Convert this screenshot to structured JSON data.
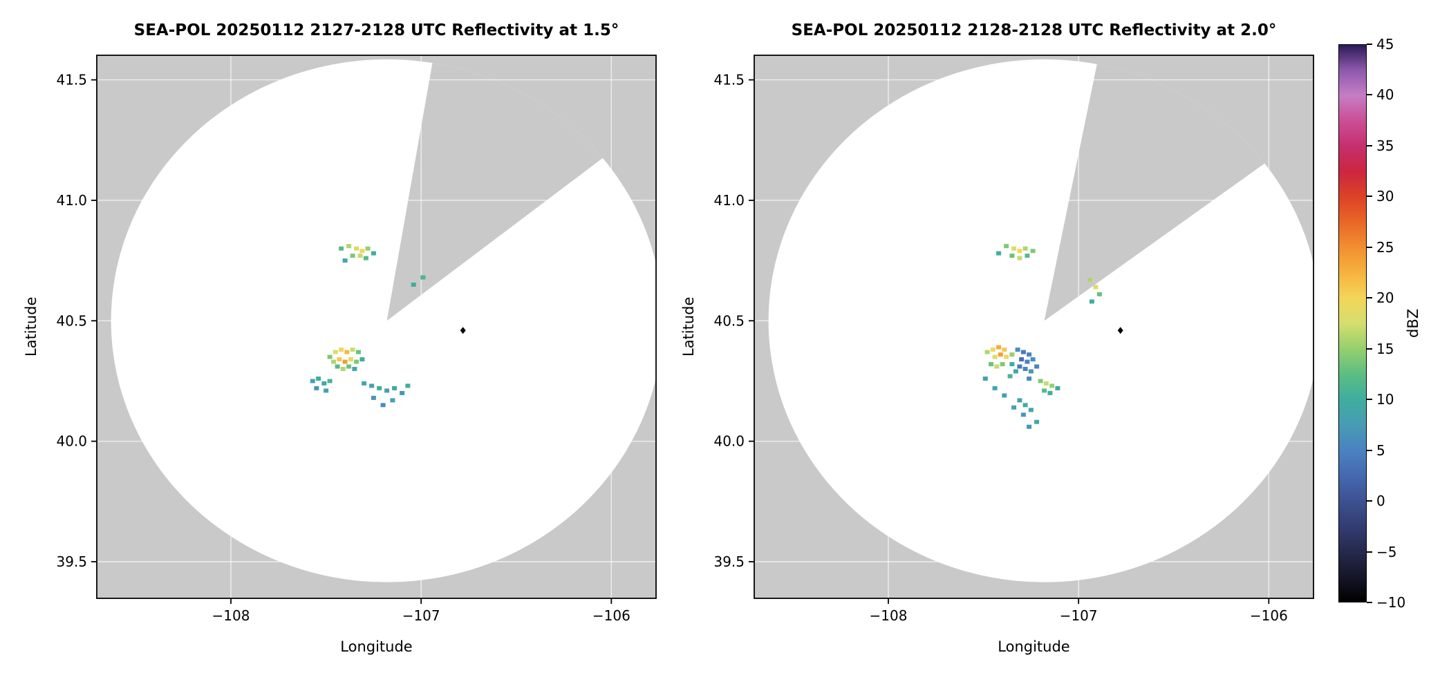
{
  "figure": {
    "background": "#ffffff",
    "mask_color": "#c9c9c9",
    "grid_color": "rgba(255,255,255,0.7)"
  },
  "chart_data": [
    {
      "type": "radar_ppi_pcolormesh",
      "title": "SEA-POL 20250112 2127-2128 UTC Reflectivity at 1.5°",
      "xlabel": "Longitude",
      "ylabel": "Latitude",
      "xlim": [
        -108.705,
        -105.765
      ],
      "ylim": [
        39.348,
        41.602
      ],
      "xticks": [
        -108,
        -107,
        -106
      ],
      "xtick_labels": [
        "−108",
        "−107",
        "−106"
      ],
      "yticks": [
        39.5,
        40.0,
        40.5,
        41.0,
        41.5
      ],
      "ytick_labels": [
        "39.5",
        "40.0",
        "40.5",
        "41.0",
        "41.5"
      ],
      "grid": true,
      "radar": {
        "lon": -107.18,
        "lat": 40.5,
        "radius_lon_deg": 1.45,
        "radius_lat_deg": 1.085,
        "blocked_sector_deg": [
          9.5,
          52.5
        ]
      },
      "site_marker": {
        "lon": -106.78,
        "lat": 40.46,
        "shape": "diamond",
        "color": "#000000"
      },
      "echoes_lon_lat_dbz": [
        [
          -107.42,
          40.8,
          12
        ],
        [
          -107.38,
          40.81,
          16
        ],
        [
          -107.34,
          40.8,
          18
        ],
        [
          -107.31,
          40.79,
          20
        ],
        [
          -107.28,
          40.8,
          15
        ],
        [
          -107.36,
          40.77,
          14
        ],
        [
          -107.32,
          40.77,
          17
        ],
        [
          -107.29,
          40.76,
          12
        ],
        [
          -107.4,
          40.75,
          9
        ],
        [
          -107.25,
          40.78,
          10
        ],
        [
          -107.04,
          40.65,
          10
        ],
        [
          -106.99,
          40.68,
          11
        ],
        [
          -107.48,
          40.35,
          14
        ],
        [
          -107.45,
          40.37,
          18
        ],
        [
          -107.42,
          40.38,
          20
        ],
        [
          -107.39,
          40.37,
          22
        ],
        [
          -107.36,
          40.38,
          17
        ],
        [
          -107.33,
          40.37,
          13
        ],
        [
          -107.46,
          40.33,
          16
        ],
        [
          -107.43,
          40.34,
          21
        ],
        [
          -107.4,
          40.33,
          24
        ],
        [
          -107.37,
          40.34,
          19
        ],
        [
          -107.34,
          40.33,
          14
        ],
        [
          -107.31,
          40.34,
          10
        ],
        [
          -107.44,
          40.31,
          12
        ],
        [
          -107.41,
          40.3,
          16
        ],
        [
          -107.38,
          40.31,
          13
        ],
        [
          -107.35,
          40.3,
          9
        ],
        [
          -107.57,
          40.25,
          8
        ],
        [
          -107.54,
          40.26,
          10
        ],
        [
          -107.51,
          40.24,
          9
        ],
        [
          -107.48,
          40.25,
          11
        ],
        [
          -107.55,
          40.22,
          7
        ],
        [
          -107.5,
          40.21,
          8
        ],
        [
          -107.3,
          40.24,
          9
        ],
        [
          -107.26,
          40.23,
          8
        ],
        [
          -107.22,
          40.22,
          10
        ],
        [
          -107.18,
          40.21,
          8
        ],
        [
          -107.14,
          40.22,
          9
        ],
        [
          -107.1,
          40.2,
          7
        ],
        [
          -107.15,
          40.17,
          8
        ],
        [
          -107.2,
          40.15,
          6
        ],
        [
          -107.25,
          40.18,
          7
        ],
        [
          -107.07,
          40.23,
          10
        ]
      ]
    },
    {
      "type": "radar_ppi_pcolormesh",
      "title": "SEA-POL 20250112 2128-2128 UTC Reflectivity at 2.0°",
      "xlabel": "Longitude",
      "ylabel": "Latitude",
      "xlim": [
        -108.705,
        -105.765
      ],
      "ylim": [
        39.348,
        41.602
      ],
      "xticks": [
        -108,
        -107,
        -106
      ],
      "xtick_labels": [
        "−108",
        "−107",
        "−106"
      ],
      "yticks": [
        39.5,
        40.0,
        40.5,
        41.0,
        41.5
      ],
      "ytick_labels": [
        "39.5",
        "40.0",
        "40.5",
        "41.0",
        "41.5"
      ],
      "grid": true,
      "radar": {
        "lon": -107.18,
        "lat": 40.5,
        "radius_lon_deg": 1.45,
        "radius_lat_deg": 1.085,
        "blocked_sector_deg": [
          11,
          53
        ]
      },
      "site_marker": {
        "lon": -106.78,
        "lat": 40.46,
        "shape": "diamond",
        "color": "#000000"
      },
      "echoes_lon_lat_dbz": [
        [
          -107.38,
          40.81,
          14
        ],
        [
          -107.34,
          40.8,
          18
        ],
        [
          -107.31,
          40.79,
          20
        ],
        [
          -107.28,
          40.8,
          16
        ],
        [
          -107.35,
          40.77,
          13
        ],
        [
          -107.31,
          40.76,
          17
        ],
        [
          -107.27,
          40.77,
          12
        ],
        [
          -107.42,
          40.78,
          10
        ],
        [
          -107.24,
          40.79,
          14
        ],
        [
          -106.94,
          40.67,
          16
        ],
        [
          -106.91,
          40.64,
          18
        ],
        [
          -106.89,
          40.61,
          13
        ],
        [
          -106.93,
          40.58,
          10
        ],
        [
          -107.48,
          40.37,
          16
        ],
        [
          -107.45,
          40.38,
          20
        ],
        [
          -107.42,
          40.39,
          23
        ],
        [
          -107.39,
          40.38,
          21
        ],
        [
          -107.44,
          40.35,
          18
        ],
        [
          -107.41,
          40.36,
          24
        ],
        [
          -107.38,
          40.35,
          20
        ],
        [
          -107.35,
          40.36,
          15
        ],
        [
          -107.46,
          40.32,
          13
        ],
        [
          -107.43,
          40.31,
          17
        ],
        [
          -107.4,
          40.32,
          14
        ],
        [
          -107.32,
          40.38,
          6
        ],
        [
          -107.29,
          40.37,
          4
        ],
        [
          -107.26,
          40.36,
          5
        ],
        [
          -107.3,
          40.34,
          3
        ],
        [
          -107.27,
          40.33,
          5
        ],
        [
          -107.24,
          40.34,
          6
        ],
        [
          -107.31,
          40.31,
          4
        ],
        [
          -107.28,
          40.3,
          5
        ],
        [
          -107.25,
          40.29,
          7
        ],
        [
          -107.22,
          40.31,
          5
        ],
        [
          -107.26,
          40.26,
          6
        ],
        [
          -107.35,
          40.32,
          10
        ],
        [
          -107.33,
          40.29,
          9
        ],
        [
          -107.36,
          40.27,
          11
        ],
        [
          -107.2,
          40.25,
          14
        ],
        [
          -107.17,
          40.24,
          17
        ],
        [
          -107.14,
          40.23,
          15
        ],
        [
          -107.18,
          40.21,
          12
        ],
        [
          -107.15,
          40.2,
          10
        ],
        [
          -107.11,
          40.22,
          9
        ],
        [
          -107.31,
          40.17,
          8
        ],
        [
          -107.28,
          40.15,
          10
        ],
        [
          -107.25,
          40.13,
          9
        ],
        [
          -107.29,
          40.11,
          7
        ],
        [
          -107.34,
          40.14,
          8
        ],
        [
          -107.22,
          40.08,
          9
        ],
        [
          -107.26,
          40.06,
          7
        ],
        [
          -107.39,
          40.19,
          8
        ],
        [
          -107.44,
          40.22,
          9
        ],
        [
          -107.49,
          40.26,
          8
        ]
      ]
    }
  ],
  "colorbar": {
    "label": "dBZ",
    "min": -10,
    "max": 45,
    "tick_values": [
      45,
      40,
      35,
      30,
      25,
      20,
      15,
      10,
      5,
      0,
      -5,
      -10
    ],
    "tick_labels": [
      "45",
      "40",
      "35",
      "30",
      "25",
      "20",
      "15",
      "10",
      "5",
      "0",
      "−5",
      "−10"
    ],
    "stops": [
      {
        "v": -10,
        "c": "#000000"
      },
      {
        "v": -7.5,
        "c": "#16162a"
      },
      {
        "v": -5,
        "c": "#262a4d"
      },
      {
        "v": -2.5,
        "c": "#333d73"
      },
      {
        "v": 0,
        "c": "#3d5292"
      },
      {
        "v": 2.5,
        "c": "#4569b1"
      },
      {
        "v": 5,
        "c": "#4a83c0"
      },
      {
        "v": 7.5,
        "c": "#479cb4"
      },
      {
        "v": 10,
        "c": "#3fae9d"
      },
      {
        "v": 12.5,
        "c": "#5cbe82"
      },
      {
        "v": 15,
        "c": "#96d06e"
      },
      {
        "v": 17.5,
        "c": "#d4de6e"
      },
      {
        "v": 20,
        "c": "#f3d65a"
      },
      {
        "v": 22.5,
        "c": "#f6b23e"
      },
      {
        "v": 25,
        "c": "#f28f31"
      },
      {
        "v": 27.5,
        "c": "#e96726"
      },
      {
        "v": 30,
        "c": "#dc4226"
      },
      {
        "v": 32.5,
        "c": "#cc2640"
      },
      {
        "v": 35,
        "c": "#c62f6e"
      },
      {
        "v": 37.5,
        "c": "#cb4f97"
      },
      {
        "v": 40,
        "c": "#c57ec4"
      },
      {
        "v": 42.5,
        "c": "#8d58ad"
      },
      {
        "v": 45,
        "c": "#2c1a57"
      }
    ]
  }
}
